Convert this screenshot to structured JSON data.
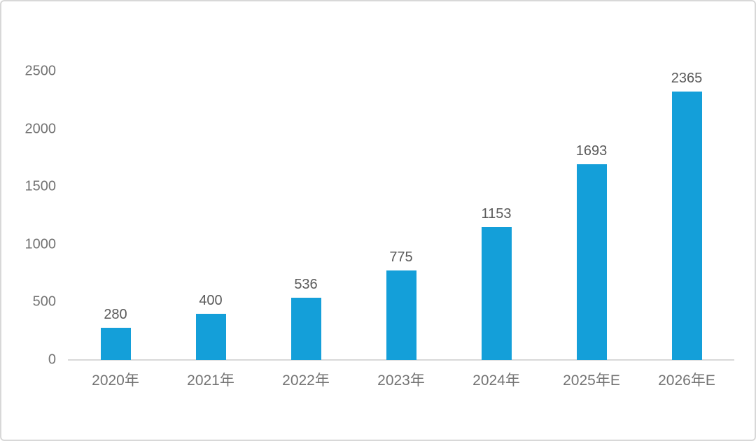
{
  "chart_data": {
    "type": "bar",
    "categories": [
      "2020年",
      "2021年",
      "2022年",
      "2023年",
      "2024年",
      "2025年E",
      "2026年E"
    ],
    "values": [
      280,
      400,
      536,
      775,
      1153,
      1693,
      2365
    ],
    "title": "",
    "xlabel": "",
    "ylabel": "",
    "ylim": [
      0,
      2500
    ],
    "yticks": [
      0,
      500,
      1000,
      1500,
      2000,
      2500
    ],
    "grid": false,
    "legend_position": "none",
    "colors": {
      "bar": "#149fd9",
      "axis_line": "#d9d9d9",
      "tick_label": "#737373",
      "data_label": "#595959",
      "frame_border": "#d8d8d8",
      "background": "#ffffff"
    }
  }
}
